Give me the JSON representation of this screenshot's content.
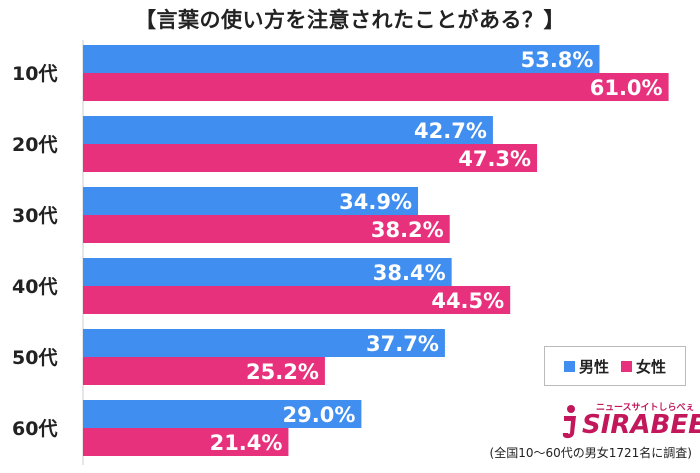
{
  "title": "【言葉の使い方を注意されたことがある？】",
  "legend": {
    "male": "男性",
    "female": "女性"
  },
  "logo": {
    "sub": "ニュースサイトしらべぇ",
    "main": "SIRABEE"
  },
  "footnote": "(全国10〜60代の男女1721名に調査)",
  "colors": {
    "male": "#3f8ef0",
    "female": "#e8317d"
  },
  "chart_data": {
    "type": "bar",
    "orientation": "horizontal",
    "title": "【言葉の使い方を注意されたことがある？】",
    "categories": [
      "10代",
      "20代",
      "30代",
      "40代",
      "50代",
      "60代"
    ],
    "series": [
      {
        "name": "男性",
        "color": "#3f8ef0",
        "values": [
          53.8,
          42.7,
          34.9,
          38.4,
          37.7,
          29.0
        ]
      },
      {
        "name": "女性",
        "color": "#e8317d",
        "values": [
          61.0,
          47.3,
          38.2,
          44.5,
          25.2,
          21.4
        ]
      }
    ],
    "value_suffix": "%",
    "xlim": [
      0,
      100
    ],
    "legend_position": "bottom-right",
    "grid": false
  }
}
